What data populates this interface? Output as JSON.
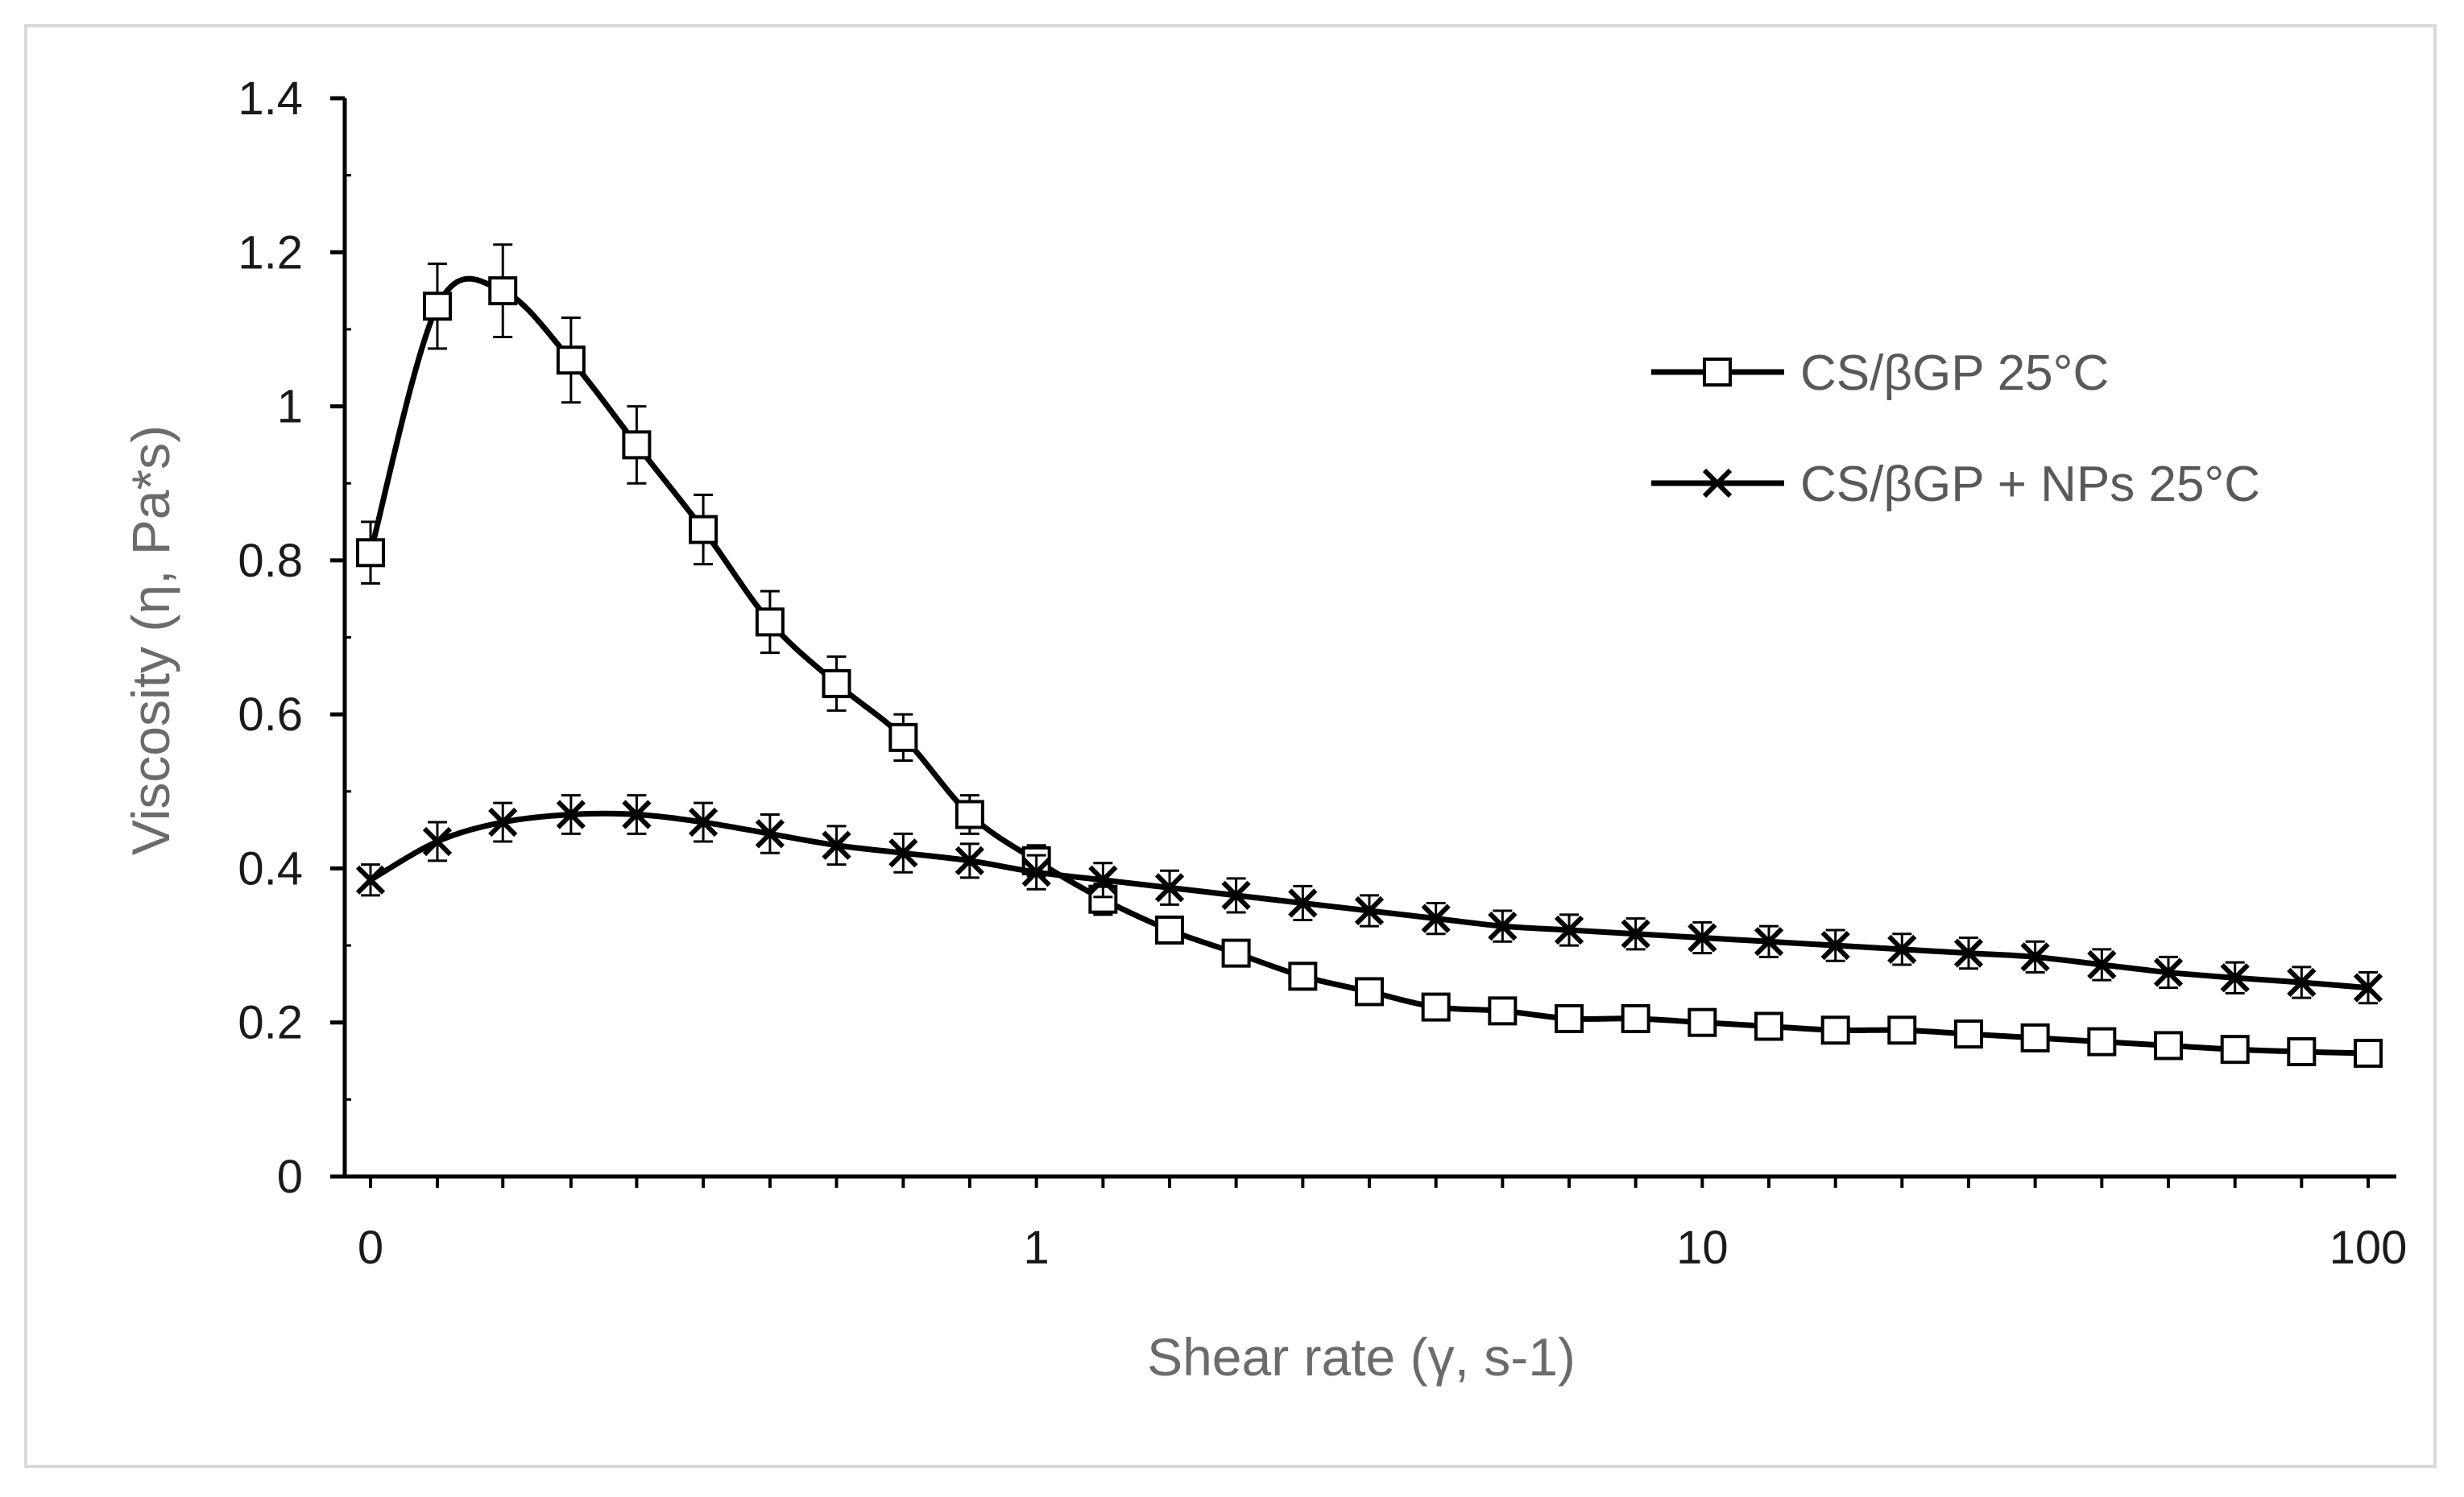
{
  "chart_data": {
    "type": "line",
    "title": "",
    "xlabel": "Shear rate (γ, s-1)",
    "ylabel": "Viscosity (η, Pa*s)",
    "x_scale": "log",
    "x_tick_labels": [
      "0",
      "1",
      "10",
      "100"
    ],
    "x_tick_values": [
      0.1,
      1,
      10,
      100
    ],
    "xlim": [
      0.1,
      100
    ],
    "ylim": [
      0,
      1.4
    ],
    "y_tick_labels": [
      "0",
      "0.2",
      "0.4",
      "0.6",
      "0.8",
      "1",
      "1.2",
      "1.4"
    ],
    "y_tick_values": [
      0,
      0.2,
      0.4,
      0.6,
      0.8,
      1.0,
      1.2,
      1.4
    ],
    "grid": false,
    "legend_position": "top-right",
    "series": [
      {
        "name": "CS/βGP 25°C",
        "marker": "square",
        "x": [
          0.1,
          0.126,
          0.158,
          0.2,
          0.251,
          0.316,
          0.398,
          0.501,
          0.631,
          0.794,
          1.0,
          1.259,
          1.585,
          1.995,
          2.512,
          3.162,
          3.981,
          5.012,
          6.31,
          7.943,
          10.0,
          12.59,
          15.85,
          19.95,
          25.12,
          31.62,
          39.81,
          50.12,
          63.1,
          79.43,
          100.0
        ],
        "values": [
          0.81,
          1.13,
          1.15,
          1.06,
          0.95,
          0.84,
          0.72,
          0.64,
          0.57,
          0.47,
          0.41,
          0.36,
          0.32,
          0.29,
          0.26,
          0.24,
          0.22,
          0.215,
          0.205,
          0.205,
          0.2,
          0.195,
          0.19,
          0.19,
          0.185,
          0.18,
          0.175,
          0.17,
          0.165,
          0.162,
          0.16
        ],
        "error": [
          0.04,
          0.055,
          0.06,
          0.055,
          0.05,
          0.045,
          0.04,
          0.035,
          0.03,
          0.025,
          0.02,
          0.02,
          0.015,
          0.015,
          0.015,
          0.012,
          0.012,
          0.012,
          0.012,
          0.012,
          0.012,
          0.012,
          0.012,
          0.012,
          0.012,
          0.012,
          0.012,
          0.012,
          0.012,
          0.012,
          0.012
        ]
      },
      {
        "name": "CS/βGP + NPs 25°C",
        "marker": "x",
        "x": [
          0.1,
          0.126,
          0.158,
          0.2,
          0.251,
          0.316,
          0.398,
          0.501,
          0.631,
          0.794,
          1.0,
          1.259,
          1.585,
          1.995,
          2.512,
          3.162,
          3.981,
          5.012,
          6.31,
          7.943,
          10.0,
          12.59,
          15.85,
          19.95,
          25.12,
          31.62,
          39.81,
          50.12,
          63.1,
          79.43,
          100.0
        ],
        "values": [
          0.385,
          0.435,
          0.46,
          0.47,
          0.47,
          0.46,
          0.445,
          0.43,
          0.42,
          0.41,
          0.395,
          0.385,
          0.375,
          0.365,
          0.355,
          0.345,
          0.335,
          0.325,
          0.32,
          0.315,
          0.31,
          0.305,
          0.3,
          0.295,
          0.29,
          0.285,
          0.275,
          0.265,
          0.258,
          0.252,
          0.245
        ],
        "error": [
          0.02,
          0.025,
          0.025,
          0.025,
          0.025,
          0.025,
          0.025,
          0.025,
          0.025,
          0.022,
          0.022,
          0.022,
          0.022,
          0.022,
          0.022,
          0.02,
          0.02,
          0.02,
          0.02,
          0.02,
          0.02,
          0.02,
          0.02,
          0.02,
          0.02,
          0.02,
          0.02,
          0.02,
          0.02,
          0.02,
          0.02
        ]
      }
    ]
  }
}
